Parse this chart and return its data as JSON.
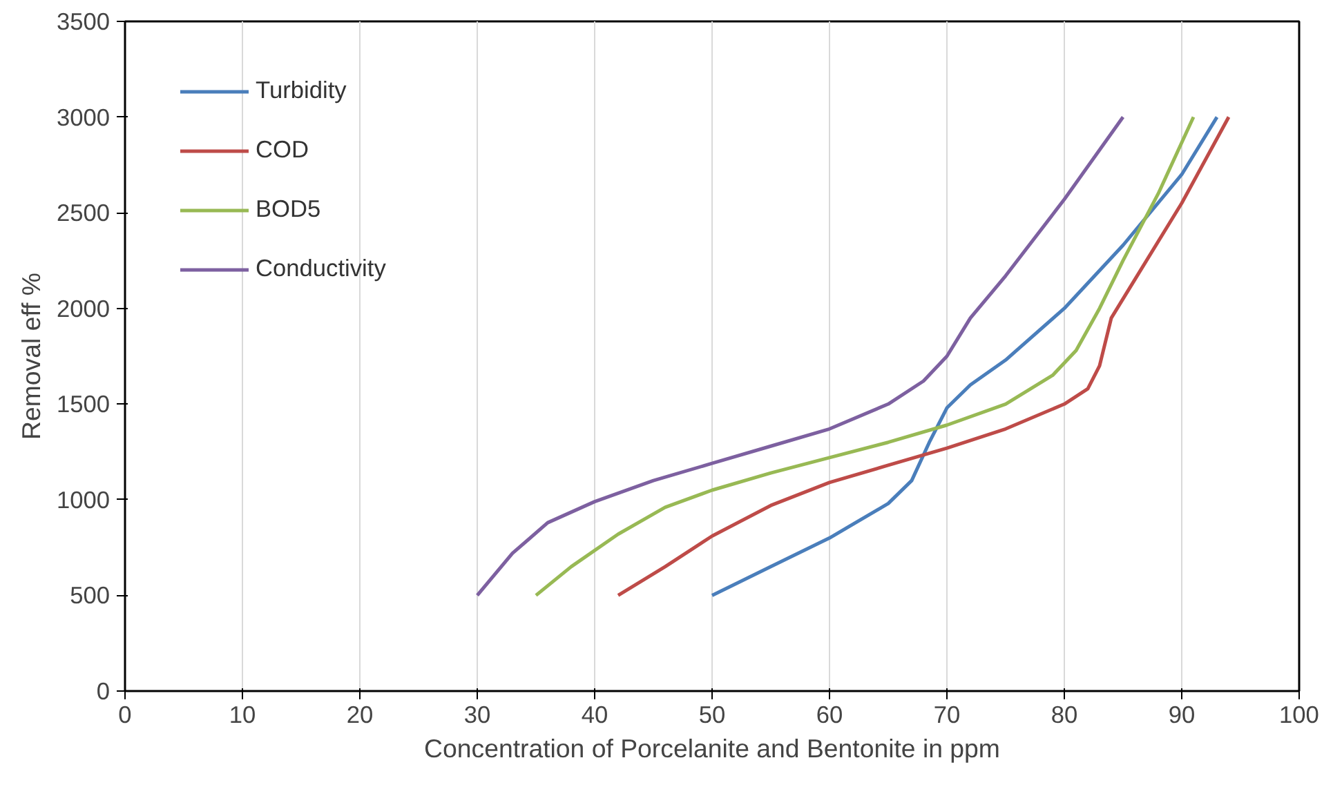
{
  "chart_data": {
    "type": "line",
    "xlabel": "Concentration of Porcelanite and Bentonite in ppm",
    "ylabel": "Removal eff %",
    "xlim": [
      0,
      100
    ],
    "xticks": [
      0,
      10,
      20,
      30,
      40,
      50,
      60,
      70,
      80,
      90,
      100
    ],
    "ylim": [
      0,
      3500
    ],
    "yticks": [
      0,
      500,
      1000,
      1500,
      2000,
      2500,
      3000,
      3500
    ],
    "grid": "x",
    "legend": "top left",
    "marker": "none",
    "line_style": "solid",
    "series": [
      {
        "name": "Turbidity",
        "color": "#4a7ebb",
        "x": [
          50,
          55,
          60,
          65,
          67,
          68.5,
          70,
          72,
          75,
          80,
          85,
          90,
          93
        ],
        "values": [
          500,
          650,
          800,
          980,
          1100,
          1300,
          1480,
          1600,
          1730,
          2000,
          2330,
          2700,
          3000
        ]
      },
      {
        "name": "COD",
        "color": "#be4b48",
        "x": [
          42,
          46,
          50,
          55,
          60,
          65,
          70,
          75,
          80,
          82,
          83,
          84,
          86,
          90,
          94
        ],
        "values": [
          500,
          650,
          810,
          970,
          1090,
          1180,
          1270,
          1370,
          1500,
          1580,
          1700,
          1950,
          2150,
          2550,
          3000
        ]
      },
      {
        "name": "BOD5",
        "color": "#98b954",
        "x": [
          35,
          38,
          42,
          46,
          50,
          55,
          60,
          65,
          70,
          75,
          79,
          81,
          83,
          85,
          88,
          91
        ],
        "values": [
          500,
          650,
          820,
          960,
          1050,
          1140,
          1220,
          1300,
          1390,
          1500,
          1650,
          1780,
          2000,
          2250,
          2600,
          3000
        ]
      },
      {
        "name": "Conductivity",
        "color": "#7d60a0",
        "x": [
          30,
          33,
          36,
          40,
          45,
          50,
          55,
          60,
          65,
          68,
          70,
          72,
          75,
          80,
          85
        ],
        "values": [
          500,
          720,
          880,
          990,
          1100,
          1190,
          1280,
          1370,
          1500,
          1620,
          1750,
          1950,
          2170,
          2570,
          3000
        ]
      }
    ]
  }
}
